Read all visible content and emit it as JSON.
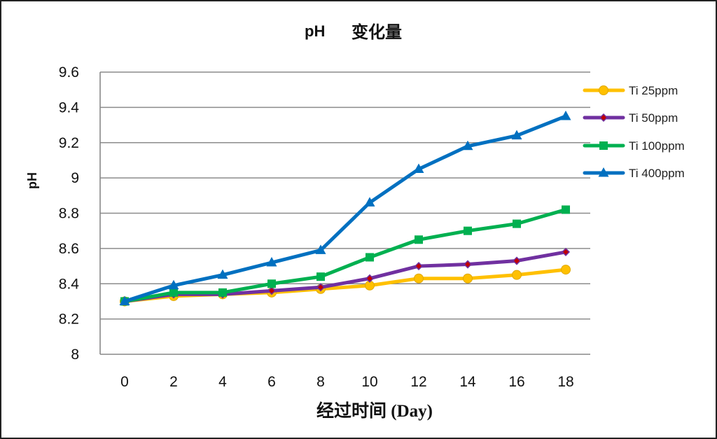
{
  "chart_data": {
    "type": "line",
    "title_prefix": "pH",
    "title_suffix": "变化量",
    "xlabel": "经过时间 (Day)",
    "ylabel": "pH",
    "x": [
      0,
      2,
      4,
      6,
      8,
      10,
      12,
      14,
      16,
      18
    ],
    "ylim": [
      8,
      9.6
    ],
    "yticks": [
      8,
      8.2,
      8.4,
      8.6,
      8.8,
      9,
      9.2,
      9.4,
      9.6
    ],
    "ytick_labels": [
      "8",
      "8.2",
      "8.4",
      "8.6",
      "8.8",
      "9",
      "9.2",
      "9.4",
      "9.6"
    ],
    "grid": true,
    "legend_position": "right",
    "series": [
      {
        "name": "Ti 25ppm",
        "color": "#FFC000",
        "marker": "circle",
        "values": [
          8.3,
          8.33,
          8.34,
          8.35,
          8.37,
          8.39,
          8.43,
          8.43,
          8.45,
          8.48
        ]
      },
      {
        "name": "Ti 50ppm",
        "color": "#7030A0",
        "marker": "diamond",
        "values": [
          8.3,
          8.34,
          8.34,
          8.36,
          8.38,
          8.43,
          8.5,
          8.51,
          8.53,
          8.58
        ]
      },
      {
        "name": "Ti 100ppm",
        "color": "#00B050",
        "marker": "square",
        "values": [
          8.3,
          8.35,
          8.35,
          8.4,
          8.44,
          8.55,
          8.65,
          8.7,
          8.74,
          8.82
        ]
      },
      {
        "name": "Ti 400ppm",
        "color": "#0070C0",
        "marker": "triangle",
        "values": [
          8.3,
          8.39,
          8.45,
          8.52,
          8.59,
          8.86,
          9.05,
          9.18,
          9.24,
          9.35
        ]
      }
    ]
  }
}
